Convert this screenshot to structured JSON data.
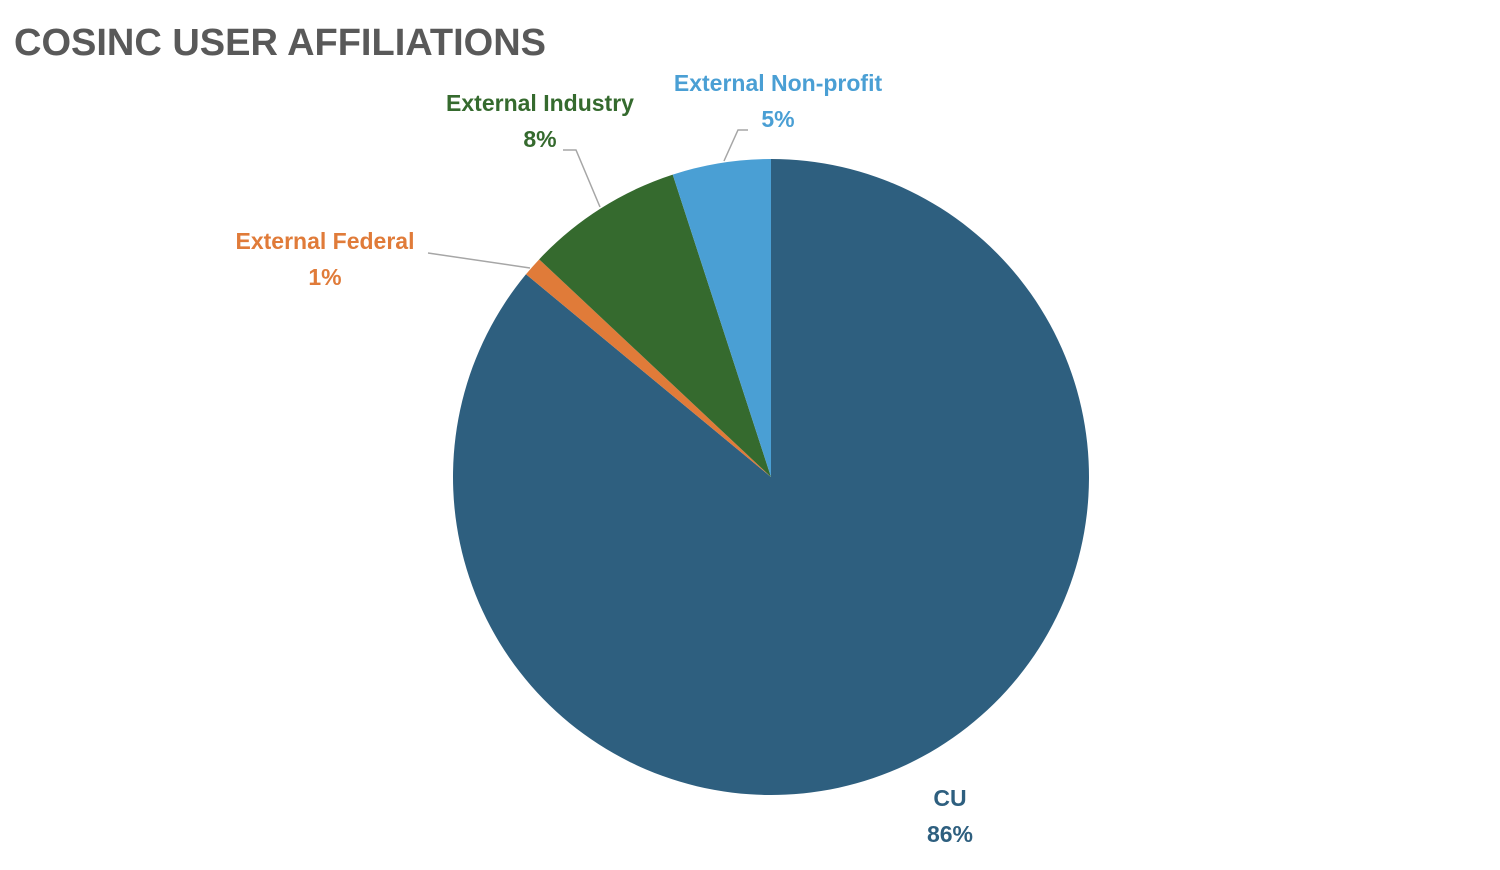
{
  "chart_data": {
    "type": "pie",
    "title": "COSINC USER AFFILIATIONS",
    "categories": [
      "CU",
      "External Federal",
      "External Industry",
      "External Non-profit"
    ],
    "values": [
      86,
      1,
      8,
      5
    ],
    "value_labels": [
      "86%",
      "1%",
      "8%",
      "5%"
    ],
    "colors": [
      "#2e5f7f",
      "#e07b39",
      "#356a2e",
      "#4a9fd4"
    ]
  }
}
